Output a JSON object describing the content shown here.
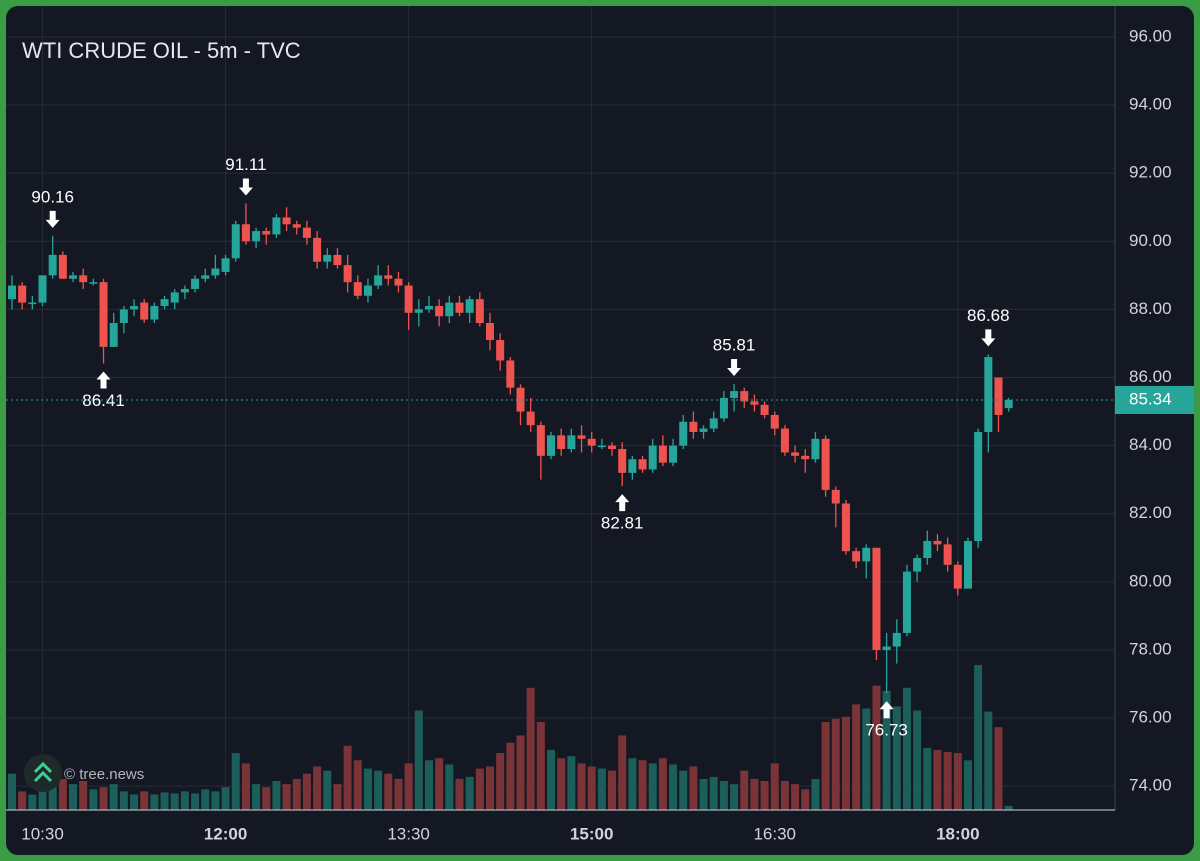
{
  "chart_data": {
    "type": "candlestick",
    "title": "WTI CRUDE OIL - 5m - TVC",
    "watermark": "© tree.news",
    "categories": [
      null,
      null,
      null,
      "10:30",
      null,
      null,
      null,
      null,
      null,
      null,
      null,
      null,
      null,
      null,
      null,
      null,
      null,
      null,
      null,
      null,
      null,
      "12:00",
      null,
      null,
      null,
      null,
      null,
      null,
      null,
      null,
      null,
      null,
      null,
      null,
      null,
      null,
      null,
      null,
      null,
      "13:30",
      null,
      null,
      null,
      null,
      null,
      null,
      null,
      null,
      null,
      null,
      null,
      null,
      null,
      null,
      null,
      null,
      null,
      "15:00",
      null,
      null,
      null,
      null,
      null,
      null,
      null,
      null,
      null,
      null,
      null,
      null,
      null,
      null,
      null,
      null,
      null,
      "16:30",
      null,
      null,
      null,
      null,
      null,
      null,
      null,
      null,
      null,
      null,
      null,
      null,
      null,
      null,
      null,
      null,
      null,
      "18:00",
      null,
      null,
      null,
      null,
      null
    ],
    "open": [
      88.3,
      88.7,
      88.2,
      88.2,
      89.0,
      89.6,
      88.9,
      89.0,
      88.8,
      88.8,
      86.9,
      87.6,
      88.0,
      88.2,
      87.7,
      88.1,
      88.2,
      88.5,
      88.6,
      88.9,
      89.0,
      89.1,
      89.5,
      90.5,
      90.0,
      90.3,
      90.2,
      90.7,
      90.5,
      90.4,
      90.1,
      89.4,
      89.6,
      89.3,
      88.8,
      88.4,
      88.7,
      89.0,
      88.9,
      88.7,
      87.9,
      88.0,
      88.1,
      87.8,
      88.2,
      87.9,
      88.3,
      87.6,
      87.1,
      86.5,
      85.7,
      85.0,
      84.6,
      83.7,
      84.3,
      83.9,
      84.3,
      84.2,
      84.0,
      84.0,
      83.9,
      83.2,
      83.6,
      83.3,
      84.0,
      83.5,
      84.0,
      84.7,
      84.4,
      84.5,
      84.8,
      85.4,
      85.6,
      85.3,
      85.2,
      84.9,
      84.5,
      83.8,
      83.7,
      83.6,
      84.2,
      82.7,
      82.3,
      80.9,
      80.6,
      81.0,
      78.0,
      78.1,
      78.5,
      80.3,
      80.7,
      81.2,
      81.1,
      80.5,
      79.8,
      81.2,
      84.4,
      86.0,
      85.1
    ],
    "high": [
      89.0,
      88.8,
      88.4,
      89.0,
      90.16,
      89.7,
      89.1,
      89.2,
      88.9,
      88.9,
      87.9,
      88.1,
      88.3,
      88.3,
      88.2,
      88.4,
      88.6,
      88.7,
      89.0,
      89.2,
      89.6,
      89.6,
      90.6,
      91.11,
      90.4,
      90.4,
      90.8,
      91.0,
      90.6,
      90.6,
      90.3,
      89.8,
      89.8,
      89.6,
      89.0,
      88.9,
      89.3,
      89.3,
      89.1,
      88.8,
      88.3,
      88.4,
      88.3,
      88.4,
      88.4,
      88.4,
      88.5,
      87.9,
      87.3,
      86.6,
      85.8,
      85.4,
      84.7,
      84.4,
      84.5,
      84.5,
      84.6,
      84.4,
      84.2,
      84.1,
      84.1,
      83.7,
      83.7,
      84.2,
      84.3,
      84.2,
      84.9,
      85.0,
      84.6,
      85.0,
      85.6,
      85.81,
      85.7,
      85.5,
      85.3,
      85.0,
      84.6,
      84.0,
      83.9,
      84.4,
      84.3,
      82.8,
      82.4,
      81.0,
      81.1,
      81.0,
      78.5,
      78.9,
      80.5,
      80.8,
      81.5,
      81.4,
      81.3,
      80.6,
      81.3,
      84.5,
      86.68,
      86.0,
      85.4
    ],
    "low": [
      88.0,
      88.0,
      88.0,
      88.1,
      88.9,
      88.9,
      88.8,
      88.6,
      88.7,
      86.41,
      86.9,
      87.3,
      87.8,
      87.6,
      87.6,
      88.0,
      88.0,
      88.3,
      88.5,
      88.8,
      88.9,
      89.0,
      89.4,
      89.9,
      89.8,
      89.9,
      90.1,
      90.3,
      90.2,
      89.9,
      89.2,
      89.2,
      89.2,
      88.5,
      88.3,
      88.2,
      88.6,
      88.7,
      88.5,
      87.4,
      87.5,
      87.9,
      87.5,
      87.6,
      87.8,
      87.6,
      87.5,
      86.8,
      86.2,
      85.5,
      84.6,
      84.4,
      83.0,
      83.6,
      83.7,
      83.8,
      83.8,
      83.8,
      83.9,
      83.7,
      82.81,
      83.0,
      83.2,
      83.2,
      83.4,
      83.4,
      83.9,
      84.2,
      84.2,
      84.4,
      84.7,
      85.0,
      85.1,
      85.0,
      84.8,
      84.3,
      83.7,
      83.5,
      83.2,
      83.5,
      82.5,
      81.6,
      80.8,
      80.4,
      80.1,
      77.7,
      76.73,
      77.6,
      78.4,
      80.0,
      80.5,
      80.9,
      80.3,
      79.6,
      79.8,
      81.0,
      83.8,
      84.4,
      85.0
    ],
    "close": [
      88.7,
      88.2,
      88.2,
      89.0,
      89.6,
      88.9,
      89.0,
      88.8,
      88.8,
      86.9,
      87.6,
      88.0,
      88.1,
      87.7,
      88.1,
      88.3,
      88.5,
      88.6,
      88.9,
      89.0,
      89.2,
      89.5,
      90.5,
      90.0,
      90.3,
      90.2,
      90.7,
      90.5,
      90.4,
      90.1,
      89.4,
      89.6,
      89.3,
      88.8,
      88.4,
      88.7,
      89.0,
      88.9,
      88.7,
      87.9,
      88.0,
      88.1,
      87.8,
      88.2,
      87.9,
      88.3,
      87.6,
      87.1,
      86.5,
      85.7,
      85.0,
      84.6,
      83.7,
      84.3,
      83.9,
      84.3,
      84.2,
      84.0,
      84.0,
      83.9,
      83.2,
      83.6,
      83.3,
      84.0,
      83.5,
      84.0,
      84.7,
      84.4,
      84.5,
      84.8,
      85.4,
      85.6,
      85.3,
      85.2,
      84.9,
      84.5,
      83.8,
      83.7,
      83.6,
      84.2,
      82.7,
      82.3,
      80.9,
      80.6,
      81.0,
      78.0,
      78.1,
      78.5,
      80.3,
      80.7,
      81.2,
      81.1,
      80.5,
      79.8,
      81.2,
      84.4,
      86.6,
      84.9,
      85.34
    ],
    "volume": [
      35,
      18,
      15,
      25,
      22,
      30,
      25,
      28,
      20,
      22,
      25,
      18,
      15,
      18,
      15,
      17,
      16,
      18,
      16,
      20,
      18,
      22,
      55,
      45,
      25,
      22,
      28,
      25,
      30,
      35,
      42,
      38,
      25,
      62,
      48,
      40,
      38,
      35,
      30,
      45,
      96,
      48,
      50,
      44,
      30,
      32,
      40,
      42,
      55,
      65,
      72,
      118,
      85,
      58,
      50,
      52,
      45,
      42,
      40,
      38,
      72,
      50,
      48,
      45,
      50,
      44,
      38,
      42,
      30,
      32,
      28,
      25,
      38,
      30,
      28,
      45,
      28,
      25,
      20,
      30,
      85,
      88,
      90,
      102,
      98,
      120,
      115,
      100,
      118,
      96,
      60,
      58,
      56,
      55,
      48,
      140,
      95,
      80,
      4
    ],
    "up_color": "#26a69a",
    "down_color": "#ef5350",
    "up_volume_color": "#1b5e5a",
    "down_volume_color": "#7a3336",
    "last_price": 85.34,
    "ylim": [
      73.3,
      96.85
    ],
    "yticks": [
      {
        "value": 74,
        "label": "74.00"
      },
      {
        "value": 76,
        "label": "76.00"
      },
      {
        "value": 78,
        "label": "78.00"
      },
      {
        "value": 80,
        "label": "80.00"
      },
      {
        "value": 82,
        "label": "82.00"
      },
      {
        "value": 84,
        "label": "84.00"
      },
      {
        "value": 86,
        "label": "86.00"
      },
      {
        "value": 88,
        "label": "88.00"
      },
      {
        "value": 90,
        "label": "90.00"
      },
      {
        "value": 92,
        "label": "92.00"
      },
      {
        "value": 94,
        "label": "94.00"
      },
      {
        "value": 96,
        "label": "96.00"
      }
    ],
    "grid": true
  }
}
